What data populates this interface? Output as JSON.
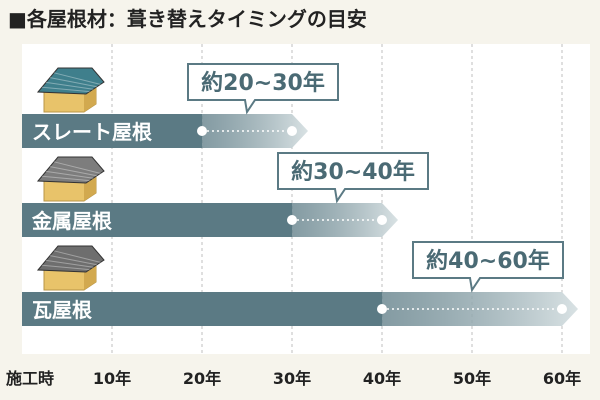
{
  "chart_data": {
    "type": "bar",
    "title": "■各屋根材：葺き替えタイミングの目安",
    "xlabel": "施工時",
    "xlim": [
      0,
      62
    ],
    "tick_values": [
      10,
      20,
      30,
      40,
      50,
      60
    ],
    "tick_labels": [
      "10年",
      "20年",
      "30年",
      "40年",
      "50年",
      "60年"
    ],
    "grid": true,
    "series": [
      {
        "name": "スレート屋根",
        "solid_until": 20,
        "range": [
          20,
          30
        ],
        "range_label": "約20~30年"
      },
      {
        "name": "金属屋根",
        "solid_until": 30,
        "range": [
          30,
          40
        ],
        "range_label": "約30~40年"
      },
      {
        "name": "瓦屋根",
        "solid_until": 40,
        "range": [
          40,
          60
        ],
        "range_label": "約40~60年"
      }
    ],
    "icons": [
      "slate-roof-house-icon",
      "metal-roof-house-icon",
      "tile-roof-house-icon"
    ]
  },
  "colors": {
    "background": "#f6f4ec",
    "title": "#222222",
    "bar": "#5b7a84",
    "bar_fade_end": "#d9e2e4",
    "callout_border": "#5b7a84",
    "grid": "#bfbfbf",
    "wall": "#e8c36a",
    "roof_slate": "#3f7f8c",
    "roof_metal": "#7d7d7d",
    "roof_tile": "#6e6e6e"
  }
}
